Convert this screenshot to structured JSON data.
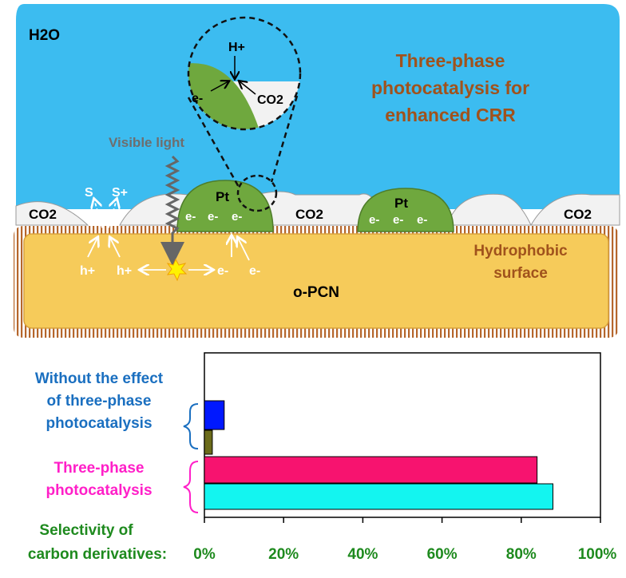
{
  "diagram": {
    "h2o_label": "H2O",
    "title_lines": [
      "Three-phase",
      "photocatalysis for",
      "enhanced CRR"
    ],
    "visible_light": "Visible light",
    "co2_left": "CO2",
    "co2_middle": "CO2",
    "co2_right": "CO2",
    "co2_zoom": "CO2",
    "h_plus_zoom": "H+",
    "e_zoom": "e-",
    "pt_label_1": "Pt",
    "pt_label_2": "Pt",
    "pt1_electrons": [
      "e-",
      "e-",
      "e-"
    ],
    "pt2_electrons": [
      "e-",
      "e-",
      "e-"
    ],
    "s_label": "S",
    "s_plus_label": "S+",
    "holes": [
      "h+",
      "h+"
    ],
    "electrons_bottom": [
      "e-",
      "e-"
    ],
    "hydrophobic_lines": [
      "Hydrophobic",
      "surface"
    ],
    "substrate_label": "o-PCN"
  },
  "chart_data": {
    "type": "bar",
    "orientation": "horizontal",
    "xlabel_lines": [
      "Selectivity of",
      "carbon derivatives:"
    ],
    "x_ticks": [
      "0%",
      "20%",
      "40%",
      "60%",
      "80%",
      "100%"
    ],
    "xlim": [
      0,
      100
    ],
    "groups": [
      {
        "label_lines": [
          "Without the effect",
          "of three-phase",
          "photocatalysis"
        ],
        "color": "#1a6fc0",
        "bars": [
          {
            "value": 5,
            "color": "#0018ff"
          },
          {
            "value": 2,
            "color": "#6b6b1a"
          }
        ]
      },
      {
        "label_lines": [
          "Three-phase",
          "photocatalysis"
        ],
        "color": "#ff1fc8",
        "bars": [
          {
            "value": 84,
            "color": "#f7136f"
          },
          {
            "value": 88,
            "color": "#13f5f0"
          }
        ]
      }
    ],
    "tick_color": "#1e8a1e"
  }
}
